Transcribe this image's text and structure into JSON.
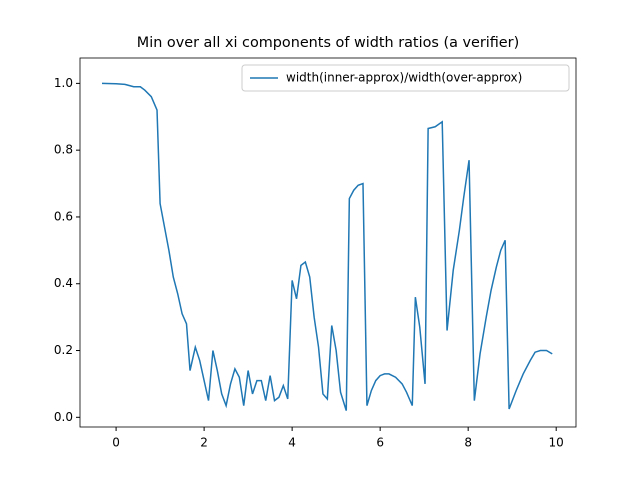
{
  "chart_data": {
    "type": "line",
    "title": "Min over all xi components of width ratios (a verifier)",
    "x": [
      -0.32,
      0.0,
      0.2,
      0.4,
      0.55,
      0.65,
      0.8,
      0.93,
      1.0,
      1.1,
      1.2,
      1.3,
      1.4,
      1.5,
      1.6,
      1.68,
      1.8,
      1.9,
      2.0,
      2.1,
      2.2,
      2.3,
      2.4,
      2.5,
      2.6,
      2.7,
      2.8,
      2.9,
      3.0,
      3.1,
      3.2,
      3.3,
      3.4,
      3.5,
      3.6,
      3.7,
      3.8,
      3.9,
      4.0,
      4.1,
      4.2,
      4.3,
      4.4,
      4.5,
      4.6,
      4.7,
      4.8,
      4.9,
      5.0,
      5.1,
      5.23,
      5.3,
      5.4,
      5.5,
      5.61,
      5.7,
      5.8,
      5.9,
      6.0,
      6.1,
      6.2,
      6.35,
      6.5,
      6.6,
      6.73,
      6.8,
      6.9,
      7.02,
      7.09,
      7.25,
      7.41,
      7.52,
      7.66,
      7.8,
      7.9,
      8.02,
      8.14,
      8.27,
      8.41,
      8.52,
      8.64,
      8.74,
      8.84,
      8.93,
      9.09,
      9.25,
      9.41,
      9.52,
      9.64,
      9.78,
      9.91
    ],
    "series": [
      {
        "name": "width(inner-approx)/width(over-approx)",
        "color": "#1f77b4",
        "values": [
          1.0,
          0.999,
          0.997,
          0.99,
          0.99,
          0.98,
          0.96,
          0.92,
          0.64,
          0.57,
          0.5,
          0.42,
          0.37,
          0.31,
          0.28,
          0.14,
          0.21,
          0.17,
          0.11,
          0.05,
          0.2,
          0.14,
          0.07,
          0.035,
          0.1,
          0.145,
          0.12,
          0.035,
          0.14,
          0.07,
          0.11,
          0.11,
          0.05,
          0.125,
          0.05,
          0.06,
          0.095,
          0.055,
          0.41,
          0.355,
          0.455,
          0.465,
          0.42,
          0.3,
          0.21,
          0.07,
          0.055,
          0.275,
          0.2,
          0.075,
          0.02,
          0.655,
          0.68,
          0.695,
          0.7,
          0.035,
          0.08,
          0.11,
          0.125,
          0.13,
          0.13,
          0.12,
          0.1,
          0.075,
          0.035,
          0.36,
          0.27,
          0.1,
          0.865,
          0.87,
          0.885,
          0.26,
          0.44,
          0.56,
          0.66,
          0.77,
          0.05,
          0.19,
          0.3,
          0.38,
          0.45,
          0.5,
          0.53,
          0.025,
          0.08,
          0.13,
          0.17,
          0.195,
          0.2,
          0.2,
          0.19
        ]
      }
    ],
    "xlim": [
      -0.82,
      10.45
    ],
    "ylim": [
      -0.029,
      1.076
    ],
    "xticks": [
      0,
      2,
      4,
      6,
      8,
      10
    ],
    "yticks": [
      {
        "value": 0,
        "label": "0.0"
      },
      0.2,
      0.4,
      0.6,
      0.8,
      {
        "value": 1,
        "label": "1.0"
      }
    ],
    "legend": "upper right"
  }
}
